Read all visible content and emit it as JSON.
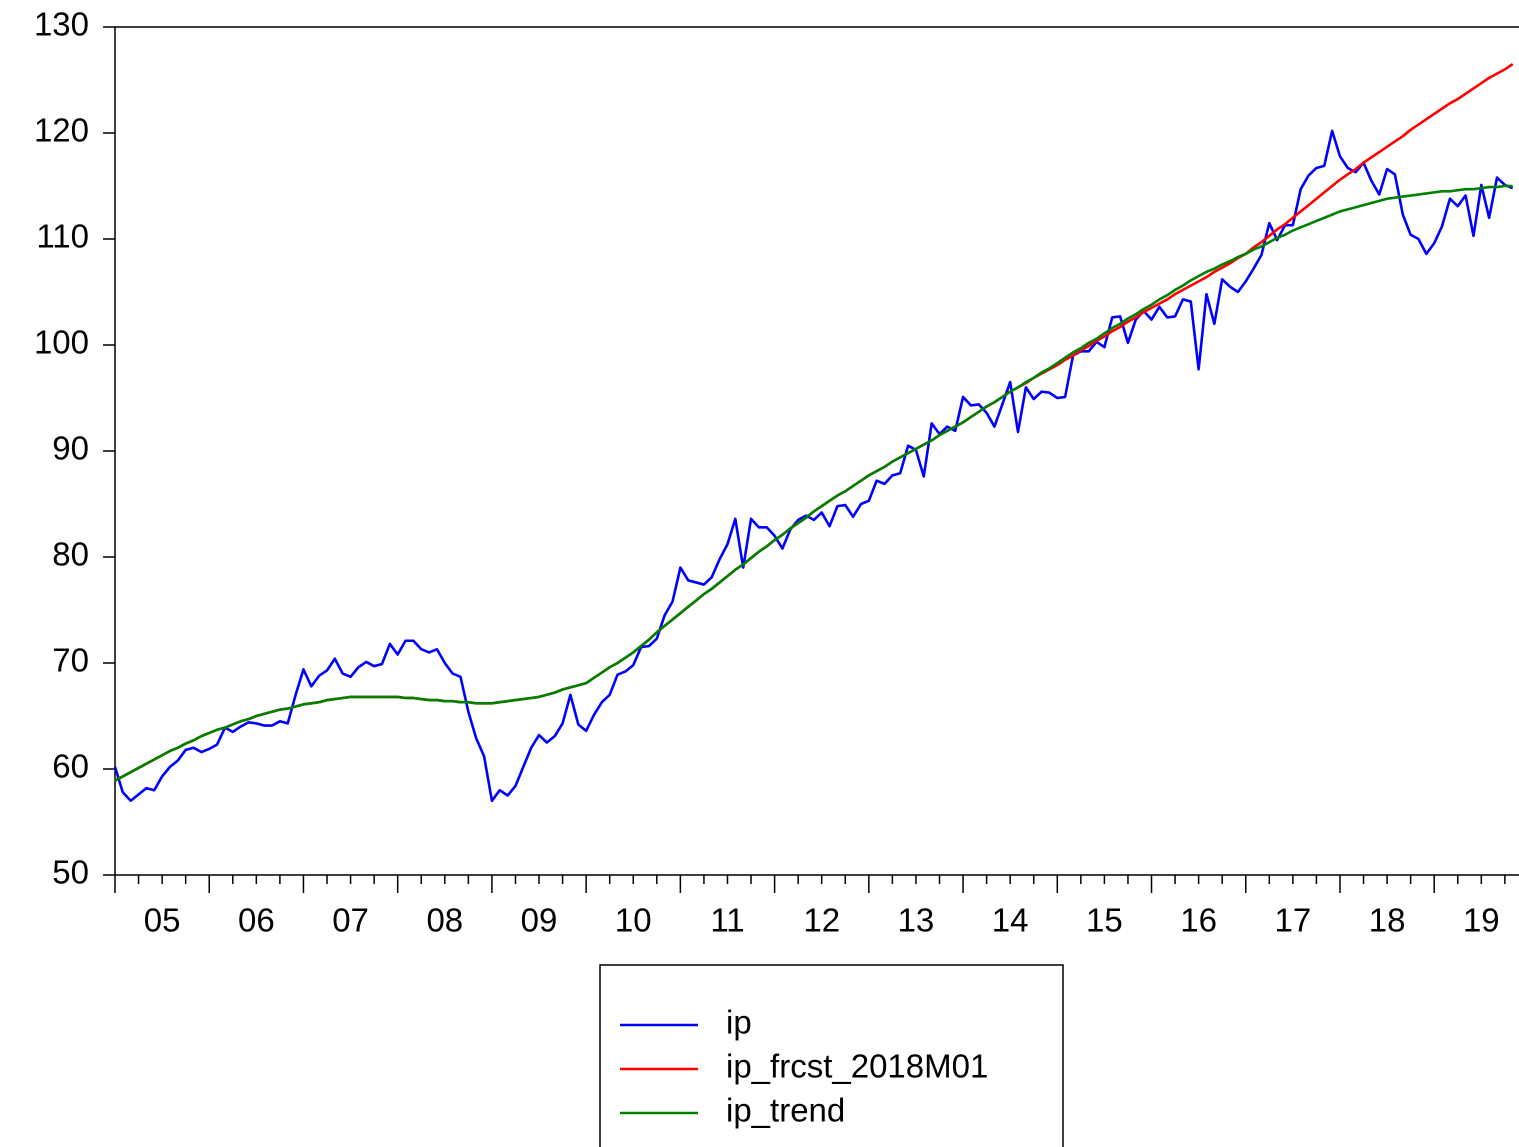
{
  "chart_data": {
    "type": "line",
    "x": [
      2005,
      2005.083,
      2005.167,
      2005.25,
      2005.333,
      2005.417,
      2005.5,
      2005.583,
      2005.667,
      2005.75,
      2005.833,
      2005.917,
      2006,
      2006.083,
      2006.167,
      2006.25,
      2006.333,
      2006.417,
      2006.5,
      2006.583,
      2006.667,
      2006.75,
      2006.833,
      2006.917,
      2007,
      2007.083,
      2007.167,
      2007.25,
      2007.333,
      2007.417,
      2007.5,
      2007.583,
      2007.667,
      2007.75,
      2007.833,
      2007.917,
      2008,
      2008.083,
      2008.167,
      2008.25,
      2008.333,
      2008.417,
      2008.5,
      2008.583,
      2008.667,
      2008.75,
      2008.833,
      2008.917,
      2009,
      2009.083,
      2009.167,
      2009.25,
      2009.333,
      2009.417,
      2009.5,
      2009.583,
      2009.667,
      2009.75,
      2009.833,
      2009.917,
      2010,
      2010.083,
      2010.167,
      2010.25,
      2010.333,
      2010.417,
      2010.5,
      2010.583,
      2010.667,
      2010.75,
      2010.833,
      2010.917,
      2011,
      2011.083,
      2011.167,
      2011.25,
      2011.333,
      2011.417,
      2011.5,
      2011.583,
      2011.667,
      2011.75,
      2011.833,
      2011.917,
      2012,
      2012.083,
      2012.167,
      2012.25,
      2012.333,
      2012.417,
      2012.5,
      2012.583,
      2012.667,
      2012.75,
      2012.833,
      2012.917,
      2013,
      2013.083,
      2013.167,
      2013.25,
      2013.333,
      2013.417,
      2013.5,
      2013.583,
      2013.667,
      2013.75,
      2013.833,
      2013.917,
      2014,
      2014.083,
      2014.167,
      2014.25,
      2014.333,
      2014.417,
      2014.5,
      2014.583,
      2014.667,
      2014.75,
      2014.833,
      2014.917,
      2015,
      2015.083,
      2015.167,
      2015.25,
      2015.333,
      2015.417,
      2015.5,
      2015.583,
      2015.667,
      2015.75,
      2015.833,
      2015.917,
      2016,
      2016.083,
      2016.167,
      2016.25,
      2016.333,
      2016.417,
      2016.5,
      2016.583,
      2016.667,
      2016.75,
      2016.833,
      2016.917,
      2017,
      2017.083,
      2017.167,
      2017.25,
      2017.333,
      2017.417,
      2017.5,
      2017.583,
      2017.667,
      2017.75,
      2017.833,
      2017.917,
      2018,
      2018.083,
      2018.167,
      2018.25,
      2018.333,
      2018.417,
      2018.5,
      2018.583,
      2018.667,
      2018.75,
      2018.833,
      2018.917,
      2019,
      2019.083,
      2019.167,
      2019.25,
      2019.333,
      2019.417,
      2019.5,
      2019.583,
      2019.667,
      2019.75,
      2019.833
    ],
    "series": [
      {
        "name": "ip",
        "color": "#0000ff",
        "values": [
          60.2,
          57.8,
          57.0,
          57.6,
          58.2,
          58.0,
          59.3,
          60.2,
          60.8,
          61.8,
          62.0,
          61.6,
          61.9,
          62.3,
          63.9,
          63.5,
          64.0,
          64.4,
          64.3,
          64.1,
          64.1,
          64.5,
          64.3,
          67.0,
          69.4,
          67.8,
          68.8,
          69.3,
          70.4,
          69.0,
          68.7,
          69.6,
          70.1,
          69.7,
          69.9,
          71.8,
          70.8,
          72.1,
          72.1,
          71.3,
          71.0,
          71.3,
          70.0,
          69.0,
          68.7,
          65.4,
          62.9,
          61.2,
          57.0,
          58.0,
          57.5,
          58.4,
          60.2,
          62.0,
          63.2,
          62.5,
          63.1,
          64.3,
          67.0,
          64.2,
          63.6,
          65.1,
          66.3,
          67.0,
          68.9,
          69.2,
          69.8,
          71.5,
          71.6,
          72.3,
          74.5,
          75.8,
          79.0,
          77.8,
          77.6,
          77.4,
          78.1,
          79.8,
          81.2,
          83.6,
          79.0,
          83.6,
          82.8,
          82.8,
          82.0,
          80.8,
          82.6,
          83.5,
          83.9,
          83.5,
          84.2,
          82.9,
          84.8,
          84.9,
          83.8,
          85.0,
          85.3,
          87.2,
          86.9,
          87.7,
          87.9,
          90.5,
          90.1,
          87.6,
          92.6,
          91.6,
          92.3,
          91.9,
          95.1,
          94.3,
          94.4,
          93.6,
          92.3,
          94.4,
          96.5,
          91.8,
          96.0,
          94.9,
          95.6,
          95.5,
          95.0,
          95.1,
          99.0,
          99.4,
          99.4,
          100.3,
          99.8,
          102.6,
          102.7,
          100.2,
          102.4,
          103.2,
          102.4,
          103.6,
          102.6,
          102.7,
          104.3,
          104.1,
          97.7,
          104.8,
          102.0,
          106.2,
          105.5,
          105.0,
          106.0,
          107.2,
          108.5,
          111.5,
          109.9,
          111.3,
          111.3,
          114.7,
          116.0,
          116.7,
          116.9,
          120.2,
          117.8,
          116.7,
          116.3,
          117.2,
          115.5,
          114.2,
          116.6,
          116.1,
          112.3,
          110.4,
          110.0,
          108.6,
          109.6,
          111.2,
          113.8,
          113.1,
          114.1,
          110.3,
          115.1,
          112.0,
          115.8,
          115.1,
          114.8
        ]
      },
      {
        "name": "ip_frcst_2018M01",
        "color": "#ff0000",
        "values": [
          58.9,
          59.3,
          59.7,
          60.1,
          60.5,
          60.9,
          61.3,
          61.7,
          62.0,
          62.4,
          62.7,
          63.1,
          63.4,
          63.7,
          63.9,
          64.2,
          64.5,
          64.7,
          65.0,
          65.2,
          65.4,
          65.6,
          65.7,
          65.9,
          66.1,
          66.2,
          66.3,
          66.5,
          66.6,
          66.7,
          66.8,
          66.8,
          66.8,
          66.8,
          66.8,
          66.8,
          66.8,
          66.7,
          66.7,
          66.6,
          66.5,
          66.5,
          66.4,
          66.4,
          66.3,
          66.3,
          66.2,
          66.2,
          66.2,
          66.3,
          66.4,
          66.5,
          66.6,
          66.7,
          66.8,
          67.0,
          67.2,
          67.5,
          67.7,
          67.9,
          68.1,
          68.6,
          69.1,
          69.6,
          70.0,
          70.5,
          71.0,
          71.6,
          72.2,
          72.9,
          73.5,
          74.1,
          74.7,
          75.3,
          75.9,
          76.5,
          77.0,
          77.6,
          78.2,
          78.8,
          79.3,
          79.9,
          80.5,
          81.0,
          81.6,
          82.1,
          82.7,
          83.2,
          83.7,
          84.3,
          84.8,
          85.3,
          85.8,
          86.2,
          86.7,
          87.2,
          87.7,
          88.1,
          88.5,
          89.0,
          89.4,
          89.8,
          90.2,
          90.6,
          91.0,
          91.5,
          91.9,
          92.3,
          92.7,
          93.2,
          93.7,
          94.2,
          94.6,
          95.1,
          95.6,
          96.0,
          96.4,
          96.9,
          97.3,
          97.7,
          98.1,
          98.6,
          99.0,
          99.5,
          99.9,
          100.4,
          100.8,
          101.3,
          101.7,
          102.2,
          102.6,
          103.1,
          103.5,
          103.9,
          104.3,
          104.8,
          105.2,
          105.6,
          106.0,
          106.4,
          106.9,
          107.3,
          107.7,
          108.2,
          108.6,
          109.2,
          109.7,
          110.3,
          110.9,
          111.4,
          112.0,
          112.6,
          113.2,
          113.8,
          114.4,
          115.0,
          115.6,
          116.1,
          116.6,
          117.2,
          117.7,
          118.2,
          118.7,
          119.2,
          119.7,
          120.3,
          120.8,
          121.3,
          121.8,
          122.3,
          122.8,
          123.2,
          123.7,
          124.2,
          124.7,
          125.2,
          125.6,
          126.0,
          126.5
        ]
      },
      {
        "name": "ip_trend",
        "color": "#008000",
        "values": [
          58.9,
          59.3,
          59.7,
          60.1,
          60.5,
          60.9,
          61.3,
          61.7,
          62.0,
          62.4,
          62.7,
          63.1,
          63.4,
          63.7,
          63.9,
          64.2,
          64.5,
          64.7,
          65.0,
          65.2,
          65.4,
          65.6,
          65.7,
          65.9,
          66.1,
          66.2,
          66.3,
          66.5,
          66.6,
          66.7,
          66.8,
          66.8,
          66.8,
          66.8,
          66.8,
          66.8,
          66.8,
          66.7,
          66.7,
          66.6,
          66.5,
          66.5,
          66.4,
          66.4,
          66.3,
          66.3,
          66.2,
          66.2,
          66.2,
          66.3,
          66.4,
          66.5,
          66.6,
          66.7,
          66.8,
          67.0,
          67.2,
          67.5,
          67.7,
          67.9,
          68.1,
          68.6,
          69.1,
          69.6,
          70.0,
          70.5,
          71.0,
          71.6,
          72.2,
          72.9,
          73.5,
          74.1,
          74.7,
          75.3,
          75.9,
          76.5,
          77.0,
          77.6,
          78.2,
          78.8,
          79.3,
          79.9,
          80.5,
          81.0,
          81.6,
          82.1,
          82.7,
          83.2,
          83.7,
          84.3,
          84.8,
          85.3,
          85.8,
          86.2,
          86.7,
          87.2,
          87.7,
          88.1,
          88.5,
          89.0,
          89.4,
          89.8,
          90.2,
          90.6,
          91.0,
          91.5,
          91.9,
          92.3,
          92.7,
          93.2,
          93.7,
          94.2,
          94.6,
          95.1,
          95.6,
          96.0,
          96.5,
          96.9,
          97.4,
          97.8,
          98.3,
          98.8,
          99.3,
          99.7,
          100.2,
          100.6,
          101.1,
          101.6,
          102.0,
          102.5,
          102.9,
          103.4,
          103.8,
          104.3,
          104.7,
          105.2,
          105.6,
          106.1,
          106.5,
          106.9,
          107.2,
          107.6,
          107.9,
          108.3,
          108.6,
          109.0,
          109.3,
          109.7,
          110.1,
          110.4,
          110.8,
          111.1,
          111.4,
          111.7,
          112.0,
          112.3,
          112.6,
          112.8,
          113.0,
          113.2,
          113.4,
          113.6,
          113.8,
          113.9,
          114.0,
          114.1,
          114.2,
          114.3,
          114.4,
          114.5,
          114.5,
          114.6,
          114.7,
          114.7,
          114.8,
          114.9,
          114.9,
          115.0,
          115.0
        ]
      }
    ],
    "xlim": [
      2005,
      2019.9
    ],
    "xticks": [
      {
        "value": 2005.5,
        "label": "05"
      },
      {
        "value": 2006.5,
        "label": "06"
      },
      {
        "value": 2007.5,
        "label": "07"
      },
      {
        "value": 2008.5,
        "label": "08"
      },
      {
        "value": 2009.5,
        "label": "09"
      },
      {
        "value": 2010.5,
        "label": "10"
      },
      {
        "value": 2011.5,
        "label": "11"
      },
      {
        "value": 2012.5,
        "label": "12"
      },
      {
        "value": 2013.5,
        "label": "13"
      },
      {
        "value": 2014.5,
        "label": "14"
      },
      {
        "value": 2015.5,
        "label": "15"
      },
      {
        "value": 2016.5,
        "label": "16"
      },
      {
        "value": 2017.5,
        "label": "17"
      },
      {
        "value": 2018.5,
        "label": "18"
      },
      {
        "value": 2019.5,
        "label": "19"
      }
    ],
    "ylim": [
      50,
      130
    ],
    "yticks": [
      50,
      60,
      70,
      80,
      90,
      100,
      110,
      120,
      130
    ],
    "legend": "bottom"
  }
}
